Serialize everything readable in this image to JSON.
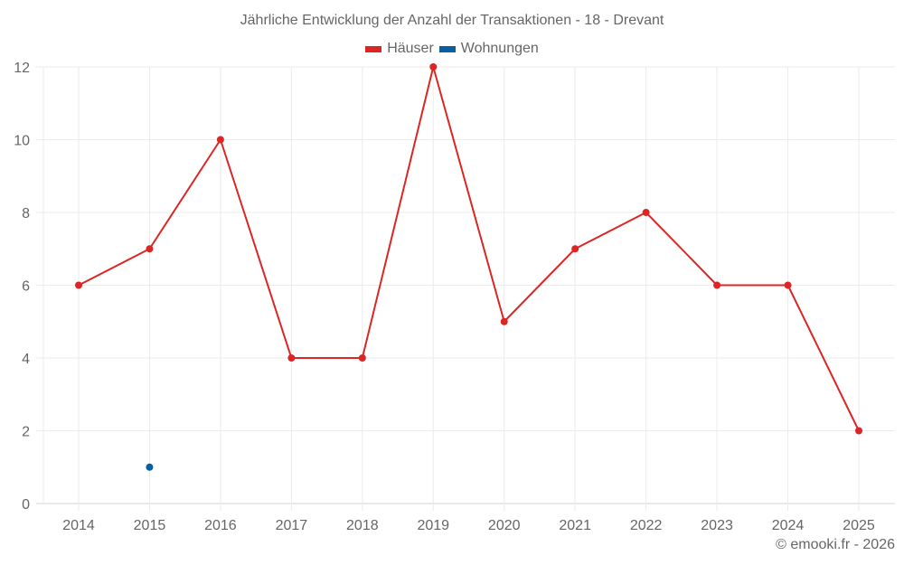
{
  "chart": {
    "title": "Jährliche Entwicklung der Anzahl der Transaktionen - 18 - Drevant",
    "credit": "© emooki.fr - 2026",
    "legend": [
      {
        "label": "Häuser",
        "color": "#dc2626"
      },
      {
        "label": "Wohnungen",
        "color": "#0a5fa0"
      }
    ]
  },
  "chart_data": {
    "type": "line",
    "title": "Jährliche Entwicklung der Anzahl der Transaktionen - 18 - Drevant",
    "xlabel": "",
    "ylabel": "",
    "categories": [
      "2014",
      "2015",
      "2016",
      "2017",
      "2018",
      "2019",
      "2020",
      "2021",
      "2022",
      "2023",
      "2024",
      "2025"
    ],
    "series": [
      {
        "name": "Häuser",
        "color": "#dc2626",
        "values": [
          6,
          7,
          10,
          4,
          4,
          12,
          5,
          7,
          8,
          6,
          6,
          2
        ]
      },
      {
        "name": "Wohnungen",
        "color": "#0a5fa0",
        "values": [
          null,
          1,
          null,
          null,
          null,
          null,
          null,
          null,
          null,
          null,
          null,
          null
        ]
      }
    ],
    "ylim": [
      0,
      12
    ],
    "yticks": [
      0,
      2,
      4,
      6,
      8,
      10,
      12
    ],
    "grid": true,
    "legend_position": "top"
  }
}
